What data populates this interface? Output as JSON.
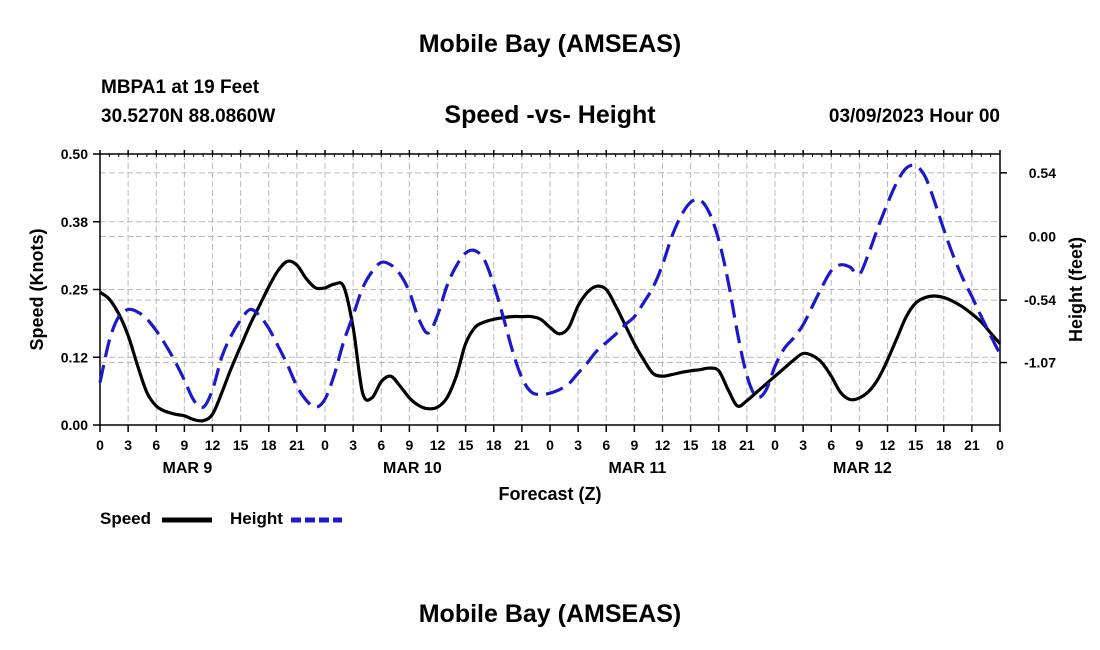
{
  "page": {
    "title": "Mobile Bay (AMSEAS)",
    "bottom_title": "Mobile Bay (AMSEAS)",
    "station": "MBPA1 at 19 Feet",
    "coords": "30.5270N  88.0860W",
    "subtitle": "Speed -vs- Height",
    "datetime": "03/09/2023 Hour 00"
  },
  "colors": {
    "speed": "#000000",
    "height": "#1a1acc",
    "grid": "#bbbbbb"
  },
  "chart_data": {
    "type": "line",
    "title": "Speed -vs- Height",
    "xlabel": "Forecast (Z)",
    "ylabel": "Speed (Knots)",
    "y2label": "Height (feet)",
    "x_range_hours": [
      0,
      96
    ],
    "x_tick_labels": [
      "0",
      "3",
      "6",
      "9",
      "12",
      "15",
      "18",
      "21",
      "0",
      "3",
      "6",
      "9",
      "12",
      "15",
      "18",
      "21",
      "0",
      "3",
      "6",
      "9",
      "12",
      "15",
      "18",
      "21",
      "0",
      "3",
      "6",
      "9",
      "12",
      "15",
      "18",
      "21",
      "0"
    ],
    "day_labels": [
      "MAR 9",
      "MAR 10",
      "MAR 11",
      "MAR 12"
    ],
    "ylim": [
      0,
      0.5
    ],
    "y_ticks": [
      "0.00",
      "0.12",
      "0.25",
      "0.38",
      "0.50"
    ],
    "y2lim": [
      -1.6,
      0.7
    ],
    "y2_ticks": [
      "0.54",
      "0.00",
      "-0.54",
      "-1.07"
    ],
    "y2_tick_values": [
      0.54,
      0.0,
      -0.54,
      -1.07
    ],
    "grid": true,
    "legend_position": "bottom-left",
    "series": [
      {
        "name": "Speed",
        "axis": "left",
        "style": "solid",
        "x": [
          0,
          1,
          2,
          3,
          4,
          5,
          6,
          7,
          8,
          9,
          10,
          11,
          12,
          13,
          14,
          15,
          16,
          17,
          18,
          19,
          20,
          21,
          22,
          23,
          24,
          25,
          26,
          27,
          28,
          29,
          30,
          31,
          32,
          33,
          34,
          35,
          36,
          37,
          38,
          39,
          40,
          41,
          42,
          43,
          44,
          45,
          46,
          47,
          48,
          49,
          50,
          51,
          52,
          53,
          54,
          55,
          56,
          57,
          58,
          59,
          60,
          61,
          62,
          63,
          64,
          65,
          66,
          67,
          68,
          69,
          70,
          71,
          72,
          73,
          74,
          75,
          76,
          77,
          78,
          79,
          80,
          81,
          82,
          83,
          84,
          85,
          86,
          87,
          88,
          89,
          90,
          91,
          92,
          93,
          94,
          95,
          96
        ],
        "values": [
          0.245,
          0.232,
          0.205,
          0.165,
          0.11,
          0.06,
          0.035,
          0.025,
          0.02,
          0.017,
          0.01,
          0.008,
          0.02,
          0.06,
          0.105,
          0.145,
          0.185,
          0.22,
          0.255,
          0.285,
          0.302,
          0.295,
          0.27,
          0.253,
          0.253,
          0.26,
          0.255,
          0.18,
          0.06,
          0.05,
          0.08,
          0.09,
          0.072,
          0.05,
          0.036,
          0.03,
          0.033,
          0.05,
          0.09,
          0.15,
          0.18,
          0.19,
          0.195,
          0.198,
          0.2,
          0.2,
          0.2,
          0.195,
          0.18,
          0.168,
          0.18,
          0.22,
          0.245,
          0.256,
          0.25,
          0.22,
          0.185,
          0.15,
          0.12,
          0.095,
          0.09,
          0.093,
          0.097,
          0.1,
          0.102,
          0.105,
          0.1,
          0.065,
          0.035,
          0.045,
          0.06,
          0.075,
          0.09,
          0.105,
          0.12,
          0.132,
          0.128,
          0.115,
          0.09,
          0.06,
          0.047,
          0.05,
          0.062,
          0.085,
          0.12,
          0.16,
          0.2,
          0.225,
          0.235,
          0.238,
          0.235,
          0.228,
          0.218,
          0.205,
          0.19,
          0.17,
          0.15
        ]
      },
      {
        "name": "Height",
        "axis": "right",
        "style": "dashed",
        "x": [
          0,
          1,
          2,
          3,
          4,
          5,
          6,
          7,
          8,
          9,
          10,
          11,
          12,
          13,
          14,
          15,
          16,
          17,
          18,
          19,
          20,
          21,
          22,
          23,
          24,
          25,
          26,
          27,
          28,
          29,
          30,
          31,
          32,
          33,
          34,
          35,
          36,
          37,
          38,
          39,
          40,
          41,
          42,
          43,
          44,
          45,
          46,
          47,
          48,
          49,
          50,
          51,
          52,
          53,
          54,
          55,
          56,
          57,
          58,
          59,
          60,
          61,
          62,
          63,
          64,
          65,
          66,
          67,
          68,
          69,
          70,
          71,
          72,
          73,
          74,
          75,
          76,
          77,
          78,
          79,
          80,
          81,
          82,
          83,
          84,
          85,
          86,
          87,
          88,
          89,
          90,
          91,
          92,
          93,
          94,
          95,
          96
        ],
        "values": [
          -1.24,
          -0.88,
          -0.68,
          -0.62,
          -0.64,
          -0.7,
          -0.8,
          -0.92,
          -1.06,
          -1.22,
          -1.39,
          -1.45,
          -1.3,
          -1.02,
          -0.84,
          -0.71,
          -0.62,
          -0.67,
          -0.78,
          -0.93,
          -1.09,
          -1.27,
          -1.39,
          -1.45,
          -1.38,
          -1.17,
          -0.89,
          -0.67,
          -0.44,
          -0.3,
          -0.22,
          -0.24,
          -0.32,
          -0.47,
          -0.7,
          -0.82,
          -0.67,
          -0.42,
          -0.25,
          -0.14,
          -0.12,
          -0.2,
          -0.41,
          -0.68,
          -0.97,
          -1.2,
          -1.32,
          -1.34,
          -1.33,
          -1.3,
          -1.25,
          -1.16,
          -1.07,
          -0.97,
          -0.9,
          -0.83,
          -0.75,
          -0.68,
          -0.56,
          -0.43,
          -0.24,
          0.0,
          0.18,
          0.29,
          0.31,
          0.2,
          -0.03,
          -0.38,
          -0.82,
          -1.18,
          -1.36,
          -1.31,
          -1.1,
          -0.95,
          -0.86,
          -0.75,
          -0.59,
          -0.43,
          -0.29,
          -0.24,
          -0.26,
          -0.32,
          -0.14,
          0.08,
          0.28,
          0.46,
          0.58,
          0.6,
          0.51,
          0.3,
          0.06,
          -0.16,
          -0.35,
          -0.51,
          -0.68,
          -0.84,
          -1.0
        ]
      }
    ]
  },
  "legend": {
    "speed_label": "Speed",
    "height_label": "Height"
  }
}
